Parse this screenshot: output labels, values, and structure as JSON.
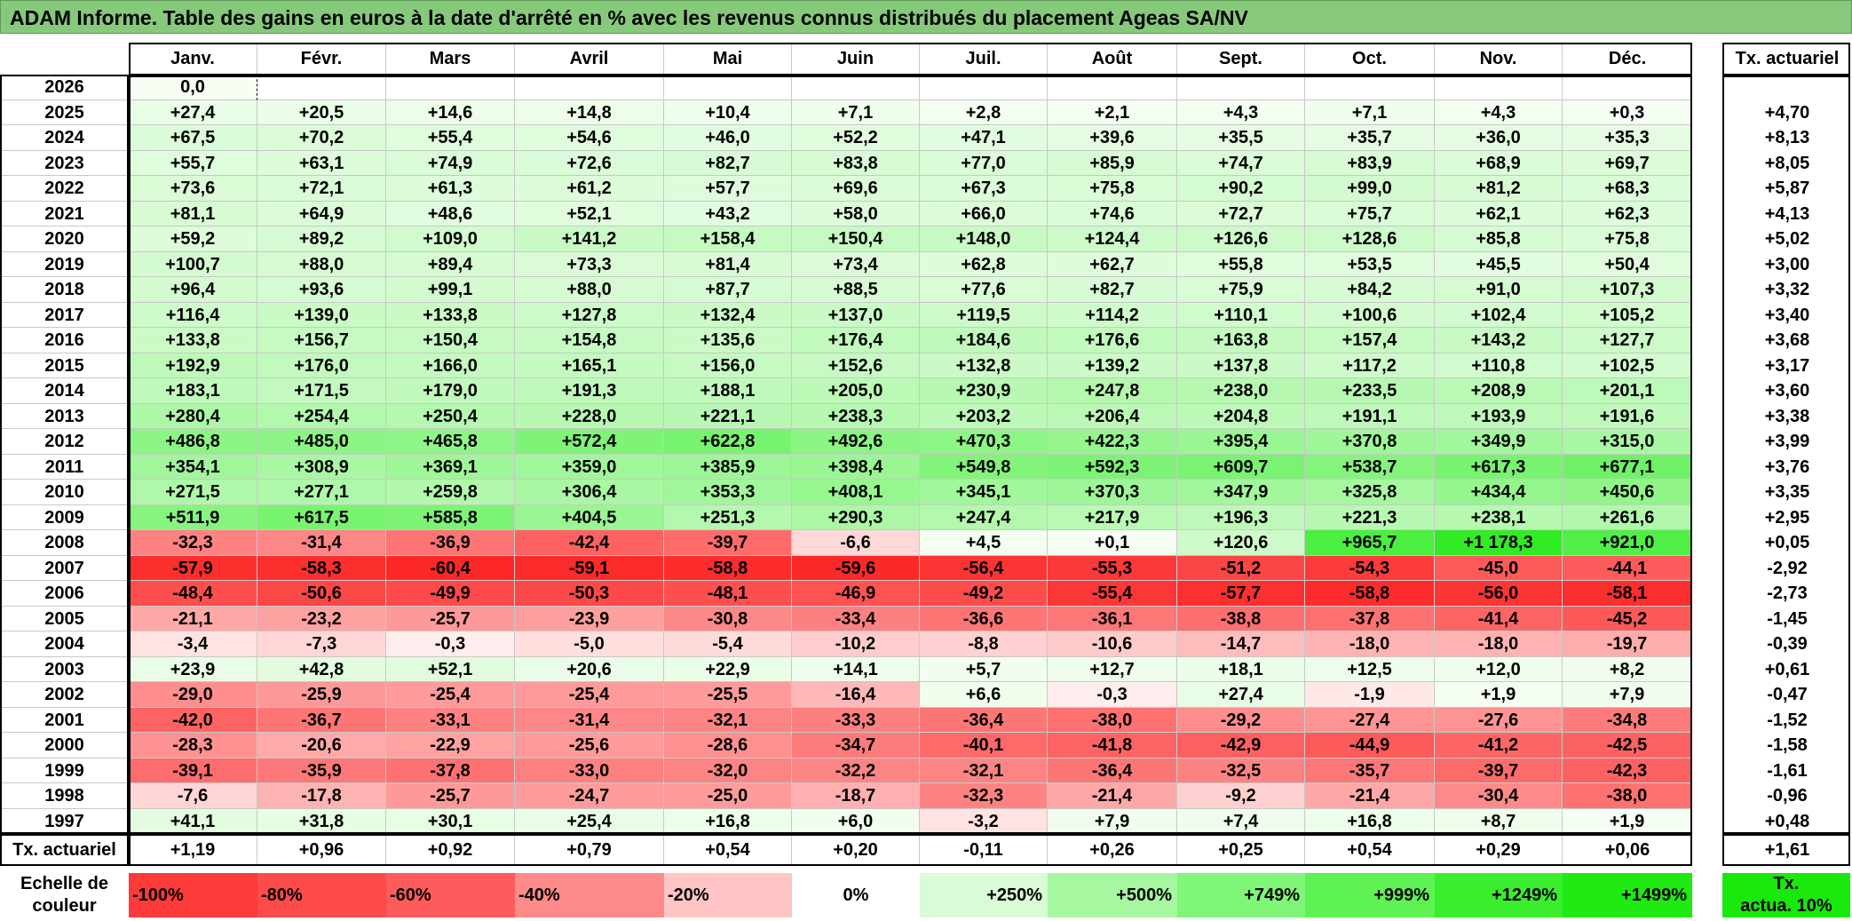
{
  "title": "ADAM Informe. Table des gains en euros à la date d'arrêté en % avec les revenus connus distribués du placement Ageas SA/NV",
  "header": {
    "months": [
      "Janv.",
      "Févr.",
      "Mars",
      "Avril",
      "Mai",
      "Juin",
      "Juil.",
      "Août",
      "Sept.",
      "Oct.",
      "Nov.",
      "Déc."
    ],
    "rate_label": "Tx. actuariel"
  },
  "rows": [
    {
      "year": "2026",
      "values": [
        "0,0",
        "",
        "",
        "",
        "",
        "",
        "",
        "",
        "",
        "",
        "",
        ""
      ],
      "rate": ""
    },
    {
      "year": "2025",
      "values": [
        "+27,4",
        "+20,5",
        "+14,6",
        "+14,8",
        "+10,4",
        "+7,1",
        "+2,8",
        "+2,1",
        "+4,3",
        "+7,1",
        "+4,3",
        "+0,3"
      ],
      "rate": "+4,70"
    },
    {
      "year": "2024",
      "values": [
        "+67,5",
        "+70,2",
        "+55,4",
        "+54,6",
        "+46,0",
        "+52,2",
        "+47,1",
        "+39,6",
        "+35,5",
        "+35,7",
        "+36,0",
        "+35,3"
      ],
      "rate": "+8,13"
    },
    {
      "year": "2023",
      "values": [
        "+55,7",
        "+63,1",
        "+74,9",
        "+72,6",
        "+82,7",
        "+83,8",
        "+77,0",
        "+85,9",
        "+74,7",
        "+83,9",
        "+68,9",
        "+69,7"
      ],
      "rate": "+8,05"
    },
    {
      "year": "2022",
      "values": [
        "+73,6",
        "+72,1",
        "+61,3",
        "+61,2",
        "+57,7",
        "+69,6",
        "+67,3",
        "+75,8",
        "+90,2",
        "+99,0",
        "+81,2",
        "+68,3"
      ],
      "rate": "+5,87"
    },
    {
      "year": "2021",
      "values": [
        "+81,1",
        "+64,9",
        "+48,6",
        "+52,1",
        "+43,2",
        "+58,0",
        "+66,0",
        "+74,6",
        "+72,7",
        "+75,7",
        "+62,1",
        "+62,3"
      ],
      "rate": "+4,13"
    },
    {
      "year": "2020",
      "values": [
        "+59,2",
        "+89,2",
        "+109,0",
        "+141,2",
        "+158,4",
        "+150,4",
        "+148,0",
        "+124,4",
        "+126,6",
        "+128,6",
        "+85,8",
        "+75,8"
      ],
      "rate": "+5,02"
    },
    {
      "year": "2019",
      "values": [
        "+100,7",
        "+88,0",
        "+89,4",
        "+73,3",
        "+81,4",
        "+73,4",
        "+62,8",
        "+62,7",
        "+55,8",
        "+53,5",
        "+45,5",
        "+50,4"
      ],
      "rate": "+3,00"
    },
    {
      "year": "2018",
      "values": [
        "+96,4",
        "+93,6",
        "+99,1",
        "+88,0",
        "+87,7",
        "+88,5",
        "+77,6",
        "+82,7",
        "+75,9",
        "+84,2",
        "+91,0",
        "+107,3"
      ],
      "rate": "+3,32"
    },
    {
      "year": "2017",
      "values": [
        "+116,4",
        "+139,0",
        "+133,8",
        "+127,8",
        "+132,4",
        "+137,0",
        "+119,5",
        "+114,2",
        "+110,1",
        "+100,6",
        "+102,4",
        "+105,2"
      ],
      "rate": "+3,40"
    },
    {
      "year": "2016",
      "values": [
        "+133,8",
        "+156,7",
        "+150,4",
        "+154,8",
        "+135,6",
        "+176,4",
        "+184,6",
        "+176,6",
        "+163,8",
        "+157,4",
        "+143,2",
        "+127,7"
      ],
      "rate": "+3,68"
    },
    {
      "year": "2015",
      "values": [
        "+192,9",
        "+176,0",
        "+166,0",
        "+165,1",
        "+156,0",
        "+152,6",
        "+132,8",
        "+139,2",
        "+137,8",
        "+117,2",
        "+110,8",
        "+102,5"
      ],
      "rate": "+3,17"
    },
    {
      "year": "2014",
      "values": [
        "+183,1",
        "+171,5",
        "+179,0",
        "+191,3",
        "+188,1",
        "+205,0",
        "+230,9",
        "+247,8",
        "+238,0",
        "+233,5",
        "+208,9",
        "+201,1"
      ],
      "rate": "+3,60"
    },
    {
      "year": "2013",
      "values": [
        "+280,4",
        "+254,4",
        "+250,4",
        "+228,0",
        "+221,1",
        "+238,3",
        "+203,2",
        "+206,4",
        "+204,8",
        "+191,1",
        "+193,9",
        "+191,6"
      ],
      "rate": "+3,38"
    },
    {
      "year": "2012",
      "values": [
        "+486,8",
        "+485,0",
        "+465,8",
        "+572,4",
        "+622,8",
        "+492,6",
        "+470,3",
        "+422,3",
        "+395,4",
        "+370,8",
        "+349,9",
        "+315,0"
      ],
      "rate": "+3,99"
    },
    {
      "year": "2011",
      "values": [
        "+354,1",
        "+308,9",
        "+369,1",
        "+359,0",
        "+385,9",
        "+398,4",
        "+549,8",
        "+592,3",
        "+609,7",
        "+538,7",
        "+617,3",
        "+677,1"
      ],
      "rate": "+3,76"
    },
    {
      "year": "2010",
      "values": [
        "+271,5",
        "+277,1",
        "+259,8",
        "+306,4",
        "+353,3",
        "+408,1",
        "+345,1",
        "+370,3",
        "+347,9",
        "+325,8",
        "+434,4",
        "+450,6"
      ],
      "rate": "+3,35"
    },
    {
      "year": "2009",
      "values": [
        "+511,9",
        "+617,5",
        "+585,8",
        "+404,5",
        "+251,3",
        "+290,3",
        "+247,4",
        "+217,9",
        "+196,3",
        "+221,3",
        "+238,1",
        "+261,6"
      ],
      "rate": "+2,95"
    },
    {
      "year": "2008",
      "values": [
        "-32,3",
        "-31,4",
        "-36,9",
        "-42,4",
        "-39,7",
        "-6,6",
        "+4,5",
        "+0,1",
        "+120,6",
        "+965,7",
        "+1 178,3",
        "+921,0"
      ],
      "rate": "+0,05"
    },
    {
      "year": "2007",
      "values": [
        "-57,9",
        "-58,3",
        "-60,4",
        "-59,1",
        "-58,8",
        "-59,6",
        "-56,4",
        "-55,3",
        "-51,2",
        "-54,3",
        "-45,0",
        "-44,1"
      ],
      "rate": "-2,92"
    },
    {
      "year": "2006",
      "values": [
        "-48,4",
        "-50,6",
        "-49,9",
        "-50,3",
        "-48,1",
        "-46,9",
        "-49,2",
        "-55,4",
        "-57,7",
        "-58,8",
        "-56,0",
        "-58,1"
      ],
      "rate": "-2,73"
    },
    {
      "year": "2005",
      "values": [
        "-21,1",
        "-23,2",
        "-25,7",
        "-23,9",
        "-30,8",
        "-33,4",
        "-36,6",
        "-36,1",
        "-38,8",
        "-37,8",
        "-41,4",
        "-45,2"
      ],
      "rate": "-1,45"
    },
    {
      "year": "2004",
      "values": [
        "-3,4",
        "-7,3",
        "-0,3",
        "-5,0",
        "-5,4",
        "-10,2",
        "-8,8",
        "-10,6",
        "-14,7",
        "-18,0",
        "-18,0",
        "-19,7"
      ],
      "rate": "-0,39"
    },
    {
      "year": "2003",
      "values": [
        "+23,9",
        "+42,8",
        "+52,1",
        "+20,6",
        "+22,9",
        "+14,1",
        "+5,7",
        "+12,7",
        "+18,1",
        "+12,5",
        "+12,0",
        "+8,2"
      ],
      "rate": "+0,61"
    },
    {
      "year": "2002",
      "values": [
        "-29,0",
        "-25,9",
        "-25,4",
        "-25,4",
        "-25,5",
        "-16,4",
        "+6,6",
        "-0,3",
        "+27,4",
        "-1,9",
        "+1,9",
        "+7,9"
      ],
      "rate": "-0,47"
    },
    {
      "year": "2001",
      "values": [
        "-42,0",
        "-36,7",
        "-33,1",
        "-31,4",
        "-32,1",
        "-33,3",
        "-36,4",
        "-38,0",
        "-29,2",
        "-27,4",
        "-27,6",
        "-34,8"
      ],
      "rate": "-1,52"
    },
    {
      "year": "2000",
      "values": [
        "-28,3",
        "-20,6",
        "-22,9",
        "-25,6",
        "-28,6",
        "-34,7",
        "-40,1",
        "-41,8",
        "-42,9",
        "-44,9",
        "-41,2",
        "-42,5"
      ],
      "rate": "-1,58"
    },
    {
      "year": "1999",
      "values": [
        "-39,1",
        "-35,9",
        "-37,8",
        "-33,0",
        "-32,0",
        "-32,2",
        "-32,1",
        "-36,4",
        "-32,5",
        "-35,7",
        "-39,7",
        "-42,3"
      ],
      "rate": "-1,61"
    },
    {
      "year": "1998",
      "values": [
        "-7,6",
        "-17,8",
        "-25,7",
        "-24,7",
        "-25,0",
        "-18,7",
        "-32,3",
        "-21,4",
        "-9,2",
        "-21,4",
        "-30,4",
        "-38,0"
      ],
      "rate": "-0,96"
    },
    {
      "year": "1997",
      "values": [
        "+41,1",
        "+31,8",
        "+30,1",
        "+25,4",
        "+16,8",
        "+6,0",
        "-3,2",
        "+7,9",
        "+7,4",
        "+16,8",
        "+8,7",
        "+1,9"
      ],
      "rate": "+0,48"
    }
  ],
  "footer": {
    "label": "Tx. actuariel",
    "values": [
      "+1,19",
      "+0,96",
      "+0,92",
      "+0,79",
      "+0,54",
      "+0,20",
      "-0,11",
      "+0,26",
      "+0,25",
      "+0,54",
      "+0,29",
      "+0,06"
    ],
    "rate": "+1,61"
  },
  "scale": {
    "label_line1": "Echelle de",
    "label_line2": "couleur",
    "items": [
      {
        "text": "-100%",
        "color": "#fc3a3a",
        "align": "left"
      },
      {
        "text": "-80%",
        "color": "#fd4b4b",
        "align": "left"
      },
      {
        "text": "-60%",
        "color": "#fe5c5c",
        "align": "left"
      },
      {
        "text": "-40%",
        "color": "#fe8a8a",
        "align": "left"
      },
      {
        "text": "-20%",
        "color": "#ffc4c4",
        "align": "left"
      },
      {
        "text": "0%",
        "color": "#ffffff",
        "align": "center"
      },
      {
        "text": "+250%",
        "color": "#d9fbd6",
        "align": "right"
      },
      {
        "text": "+500%",
        "color": "#a6f7a0",
        "align": "right"
      },
      {
        "text": "+749%",
        "color": "#80f678",
        "align": "right"
      },
      {
        "text": "+999%",
        "color": "#5ef254",
        "align": "right"
      },
      {
        "text": "+1249%",
        "color": "#3aee2e",
        "align": "right"
      },
      {
        "text": "+1499%",
        "color": "#1fea12",
        "align": "right"
      }
    ],
    "rate_line1": "Tx.",
    "rate_line2": "actua. 10%",
    "rate_color": "#19e80c"
  }
}
